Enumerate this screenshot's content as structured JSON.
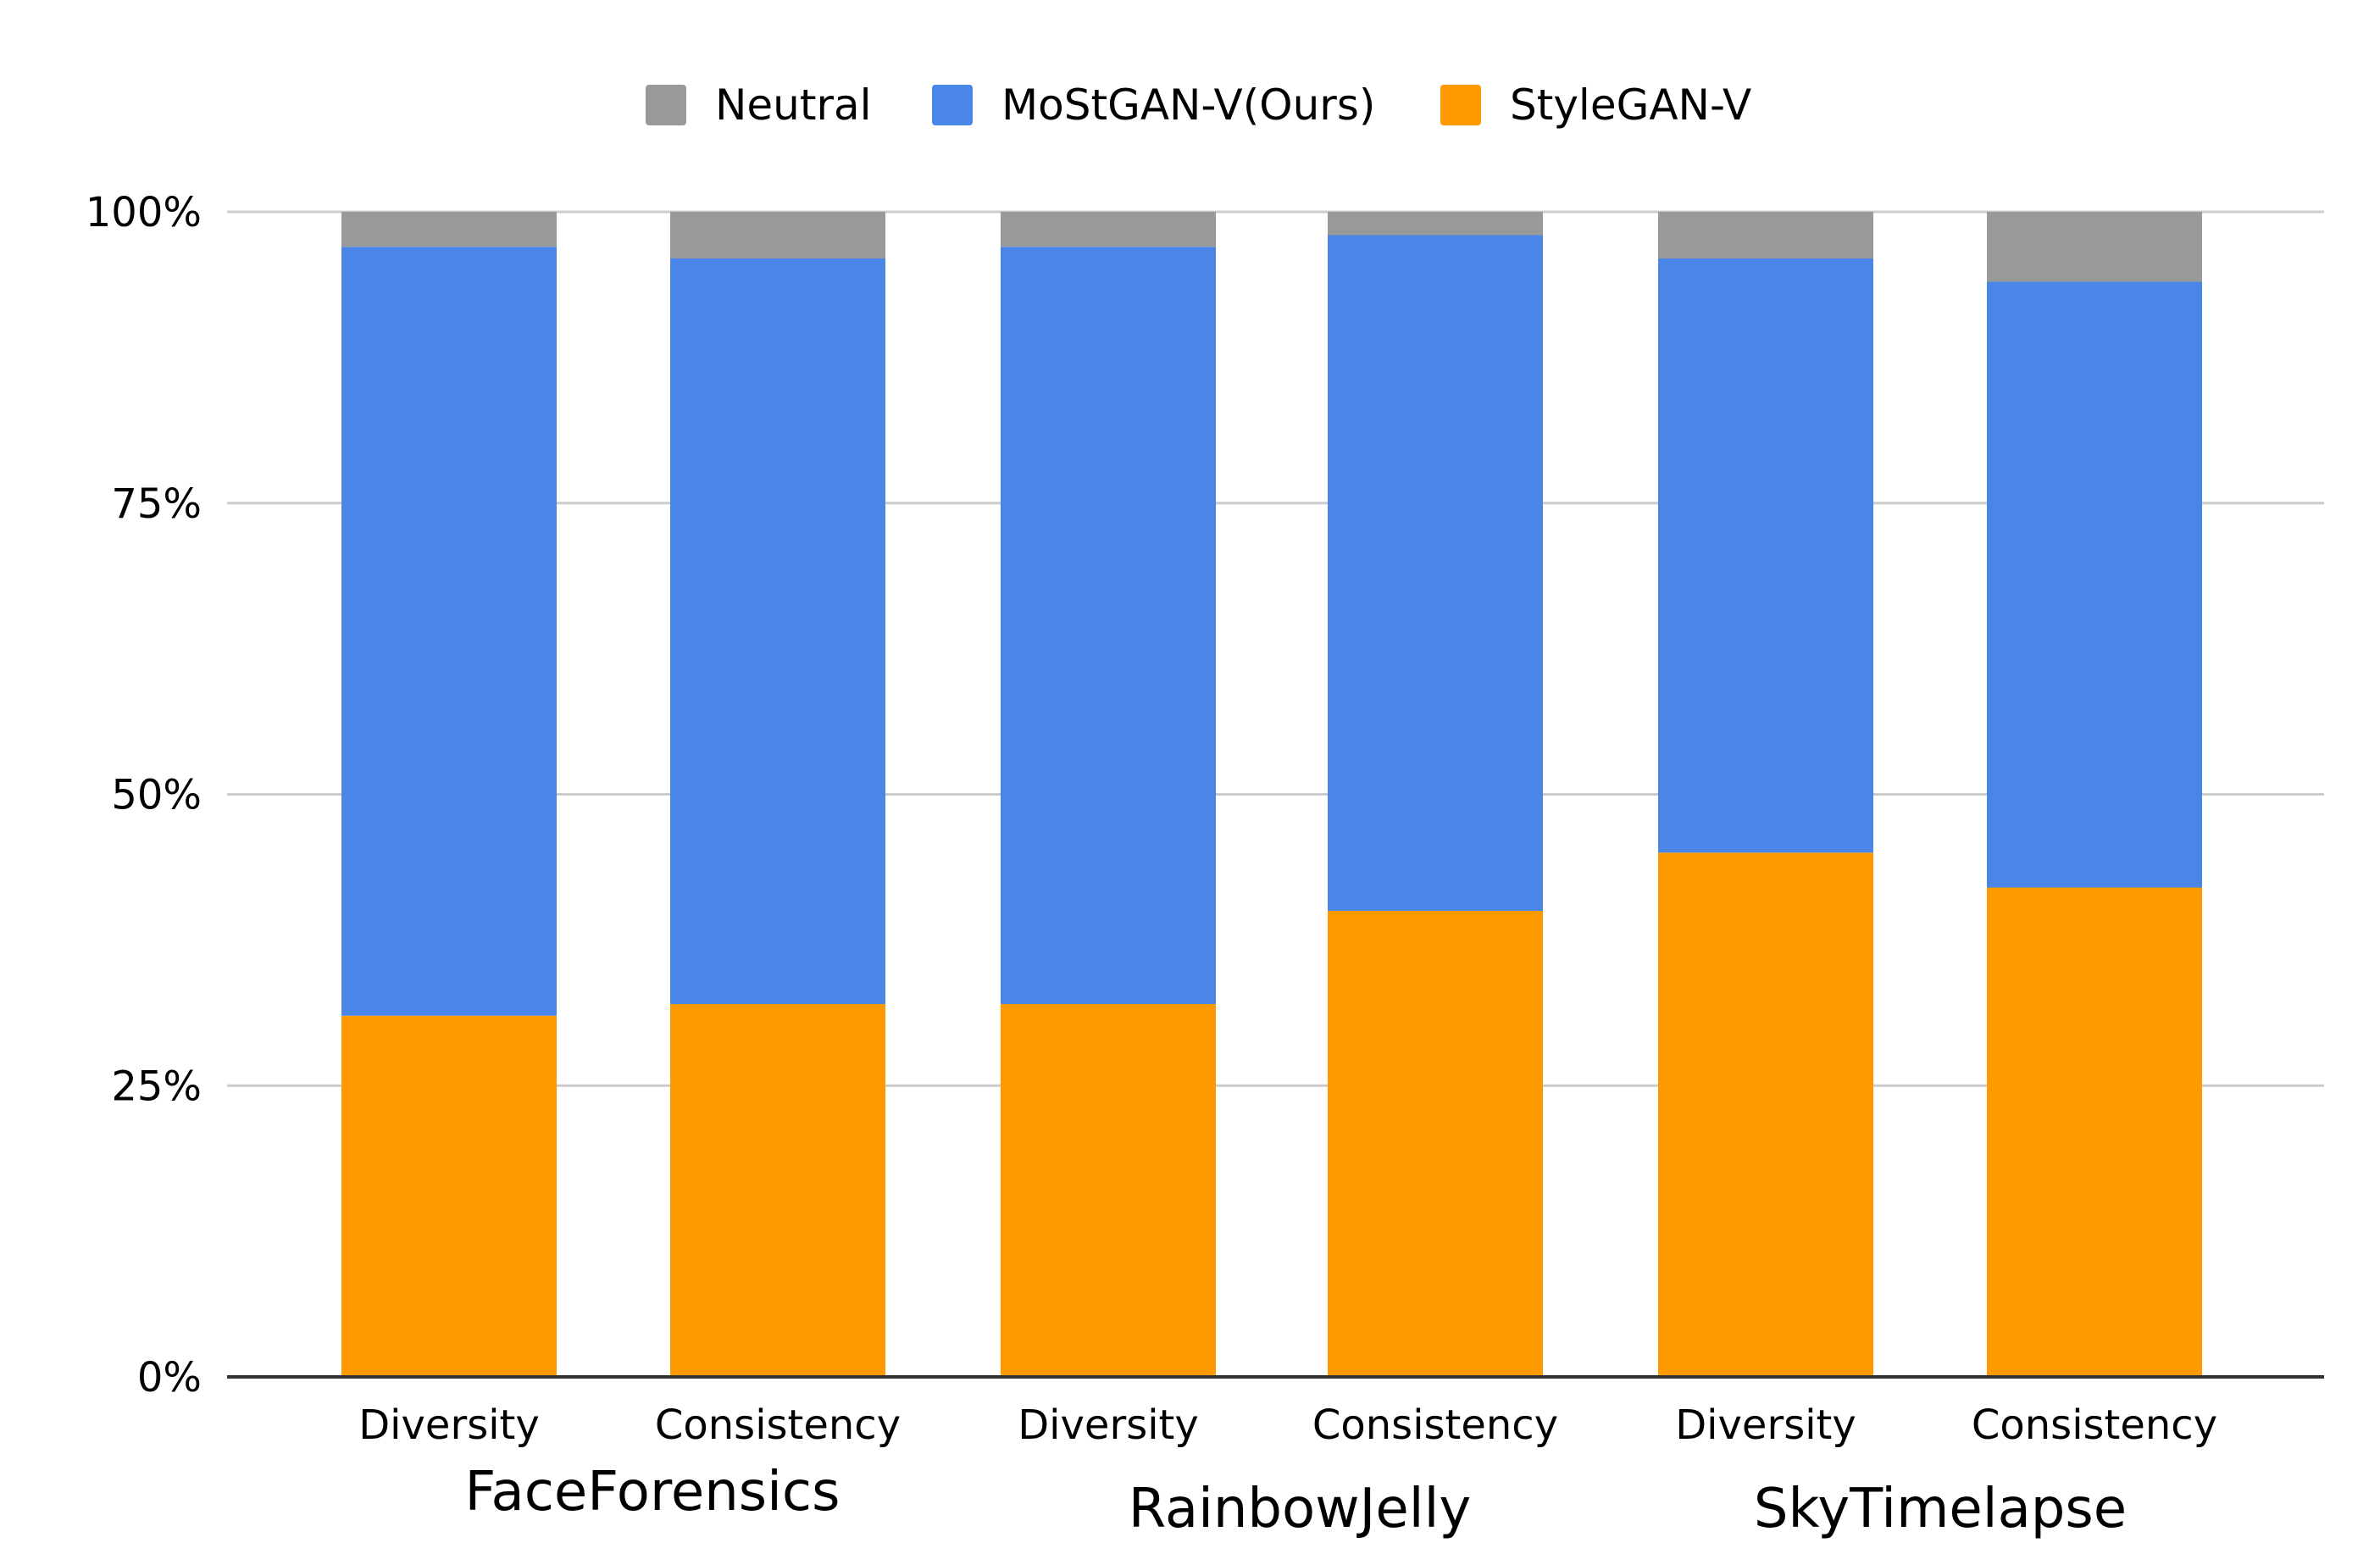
{
  "chart_data": {
    "type": "bar",
    "stacked": true,
    "normalized": true,
    "categories": [
      "Diversity",
      "Consistency",
      "Diversity",
      "Consistency",
      "Diversity",
      "Consistency"
    ],
    "groups": [
      {
        "label": "FaceForensics",
        "categories": [
          "Diversity",
          "Consistency"
        ]
      },
      {
        "label": "RainbowJelly",
        "categories": [
          "Diversity",
          "Consistency"
        ]
      },
      {
        "label": "SkyTimelapse",
        "categories": [
          "Diversity",
          "Consistency"
        ]
      }
    ],
    "series": [
      {
        "name": "StyleGAN-V",
        "color": "#ff9900",
        "values": [
          31,
          32,
          32,
          40,
          45,
          42
        ]
      },
      {
        "name": "MoStGAN-V(Ours)",
        "color": "#4a86e8",
        "values": [
          66,
          64,
          65,
          58,
          51,
          52
        ]
      },
      {
        "name": "Neutral",
        "color": "#999999",
        "values": [
          3,
          4,
          3,
          2,
          4,
          6
        ]
      }
    ],
    "legend": [
      {
        "name": "Neutral",
        "color": "#999999"
      },
      {
        "name": "MoStGAN-V(Ours)",
        "color": "#4a86e8"
      },
      {
        "name": "StyleGAN-V",
        "color": "#ff9900"
      }
    ],
    "legend_position": "top",
    "y_ticks": [
      "0%",
      "25%",
      "50%",
      "75%",
      "100%"
    ],
    "ylim": [
      0,
      100
    ],
    "grid": true,
    "title": "",
    "xlabel": "",
    "ylabel": ""
  }
}
